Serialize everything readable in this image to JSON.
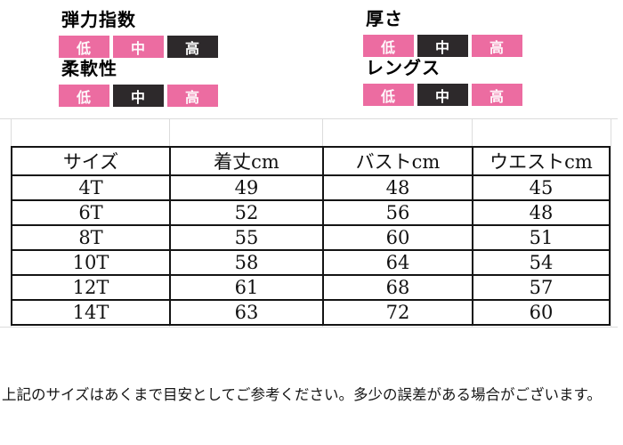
{
  "colors": {
    "badge_pink": "#ec6ca1",
    "badge_dark": "#2d292b",
    "badge_text": "#ffffff",
    "table_border": "#141414",
    "faint_grid": "#dcdcdc",
    "text": "#000000"
  },
  "specs": [
    {
      "label": "弾力指数",
      "levels": [
        {
          "text": "低",
          "highlighted": false
        },
        {
          "text": "中",
          "highlighted": false
        },
        {
          "text": "高",
          "highlighted": true
        }
      ]
    },
    {
      "label": "厚さ",
      "levels": [
        {
          "text": "低",
          "highlighted": false
        },
        {
          "text": "中",
          "highlighted": true
        },
        {
          "text": "高",
          "highlighted": false
        }
      ]
    },
    {
      "label": "柔軟性",
      "levels": [
        {
          "text": "低",
          "highlighted": false
        },
        {
          "text": "中",
          "highlighted": true
        },
        {
          "text": "高",
          "highlighted": false
        }
      ]
    },
    {
      "label": "レングス",
      "levels": [
        {
          "text": "低",
          "highlighted": false
        },
        {
          "text": "中",
          "highlighted": true
        },
        {
          "text": "高",
          "highlighted": false
        }
      ]
    }
  ],
  "size_table": {
    "columns": [
      "サイズ",
      "着丈cm",
      "バストcm",
      "ウエストcm"
    ],
    "rows": [
      [
        "4T",
        "49",
        "48",
        "45"
      ],
      [
        "6T",
        "52",
        "56",
        "48"
      ],
      [
        "8T",
        "55",
        "60",
        "51"
      ],
      [
        "10T",
        "58",
        "64",
        "54"
      ],
      [
        "12T",
        "61",
        "68",
        "57"
      ],
      [
        "14T",
        "63",
        "72",
        "60"
      ]
    ]
  },
  "note": "上記のサイズはあくまで目安としてご参考ください。多少の誤差がある場合がございます。"
}
